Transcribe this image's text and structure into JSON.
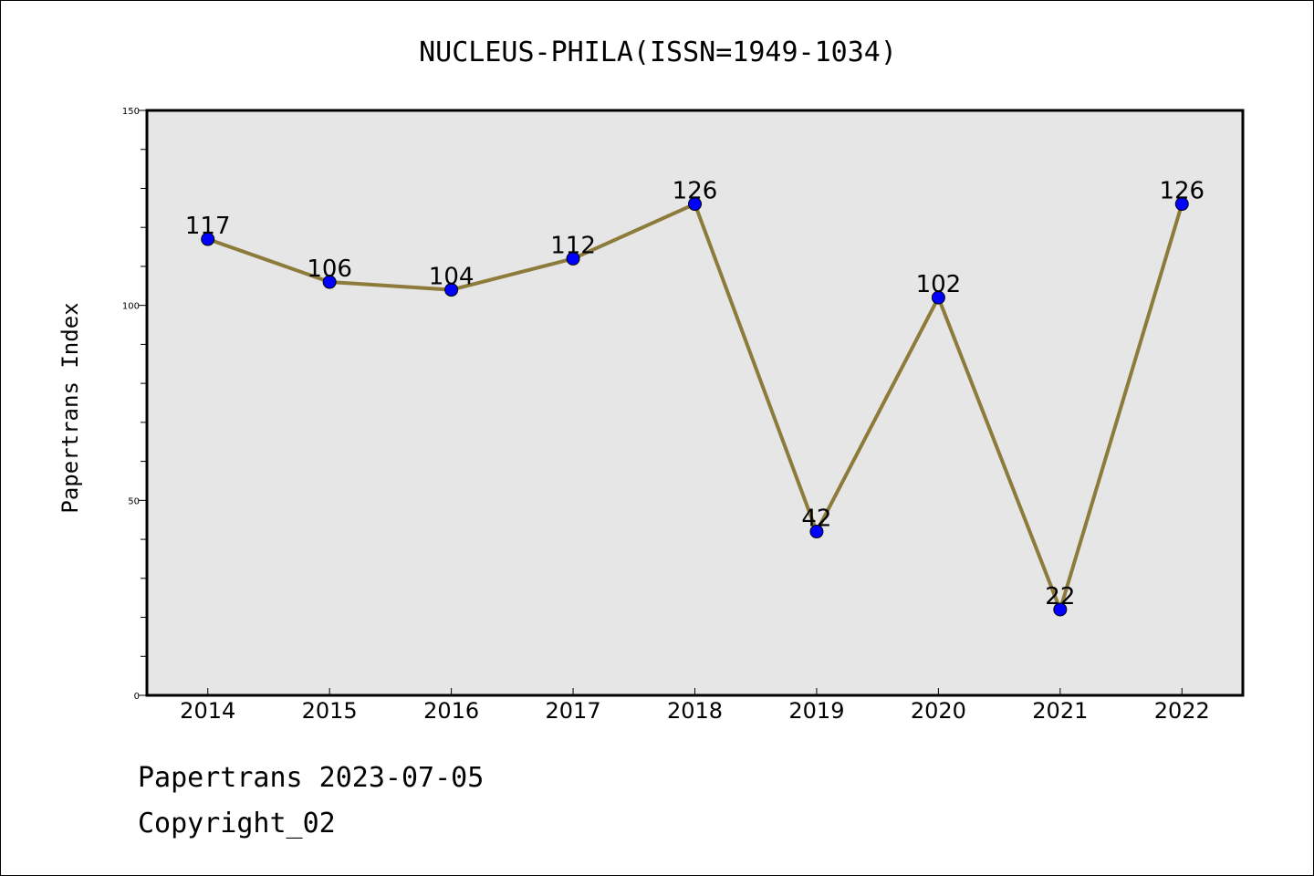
{
  "chart_data": {
    "type": "line",
    "title": "NUCLEUS-PHILA(ISSN=1949-1034)",
    "xlabel": "",
    "ylabel": "Papertrans Index",
    "categories": [
      "2014",
      "2015",
      "2016",
      "2017",
      "2018",
      "2019",
      "2020",
      "2021",
      "2022"
    ],
    "series": [
      {
        "values": [
          117,
          106,
          104,
          112,
          126,
          42,
          102,
          22,
          126
        ]
      }
    ],
    "data_labels": [
      "117",
      "106",
      "104",
      "112",
      "126",
      "42",
      "102",
      "22",
      "126"
    ],
    "ylim": [
      0,
      150
    ],
    "yticks": [
      0,
      50,
      100,
      150
    ],
    "ytick_labels": [
      "0",
      "50",
      "100",
      "150"
    ],
    "yminor_step": 10,
    "grid": false,
    "legend": "none",
    "colors": {
      "line": "#8c7b3a",
      "marker": "#0000ff",
      "plot_background": "#e6e6e6"
    }
  },
  "footer": {
    "line1": "Papertrans 2023-07-05",
    "line2": "Copyright_02"
  }
}
